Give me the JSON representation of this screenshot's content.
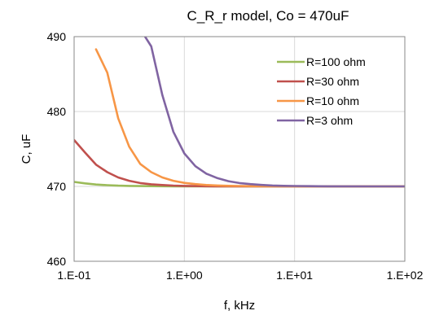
{
  "chart_data": {
    "type": "line",
    "title": "C_R_r model, Co = 470uF",
    "xlabel": "f, kHz",
    "ylabel": "C, uF",
    "xscale": "log",
    "xlim": [
      0.1,
      100
    ],
    "ylim": [
      460,
      490
    ],
    "x_ticks": [
      0.1,
      1,
      10,
      100
    ],
    "x_tick_labels": [
      "1.E-01",
      "1.E+00",
      "1.E+01",
      "1.E+02"
    ],
    "y_ticks": [
      460,
      470,
      480,
      490
    ],
    "y_tick_labels": [
      "460",
      "470",
      "480",
      "490"
    ],
    "grid": true,
    "legend_position": "top-right",
    "series": [
      {
        "name": "R=100 ohm",
        "color": "#9bbb59",
        "x": [
          0.1,
          0.126,
          0.158,
          0.2,
          0.251,
          0.316,
          0.398,
          0.501,
          0.631,
          0.794,
          1,
          2,
          5,
          10,
          20,
          50,
          100
        ],
        "y": [
          470.6,
          470.4,
          470.25,
          470.16,
          470.1,
          470.06,
          470.04,
          470.03,
          470.02,
          470.01,
          470.0,
          470.0,
          470.0,
          470.0,
          470.0,
          470.0,
          470.0
        ]
      },
      {
        "name": "R=30 ohm",
        "color": "#c0504d",
        "x": [
          0.1,
          0.126,
          0.158,
          0.2,
          0.251,
          0.316,
          0.398,
          0.501,
          0.631,
          0.794,
          1,
          1.259,
          1.585,
          2,
          5,
          10,
          20,
          50,
          100
        ],
        "y": [
          476.2,
          474.5,
          472.9,
          471.9,
          471.2,
          470.75,
          470.45,
          470.28,
          470.18,
          470.11,
          470.07,
          470.04,
          470.02,
          470.01,
          470.0,
          470.0,
          470.0,
          470.0,
          470.0
        ]
      },
      {
        "name": "R=10 ohm",
        "color": "#f79646",
        "x": [
          0.158,
          0.2,
          0.251,
          0.316,
          0.398,
          0.501,
          0.631,
          0.794,
          1,
          1.259,
          1.585,
          2,
          2.512,
          3.162,
          3.981,
          5.012,
          7.943,
          10,
          20,
          50,
          100
        ],
        "y": [
          488.3,
          485.2,
          479.1,
          475.3,
          473.0,
          471.9,
          471.2,
          470.75,
          470.47,
          470.3,
          470.19,
          470.12,
          470.08,
          470.05,
          470.03,
          470.02,
          470.01,
          470.0,
          470.0,
          470.0,
          470.0
        ]
      },
      {
        "name": "R=3 ohm",
        "color": "#8064a2",
        "x": [
          0.44,
          0.501,
          0.631,
          0.794,
          1,
          1.259,
          1.585,
          2,
          2.512,
          3.162,
          3.981,
          5.012,
          6.31,
          7.943,
          10,
          20,
          50,
          100
        ],
        "y": [
          490,
          488.7,
          482.2,
          477.3,
          474.4,
          472.7,
          471.7,
          471.1,
          470.7,
          470.45,
          470.3,
          470.2,
          470.12,
          470.08,
          470.05,
          470.01,
          470.0,
          470.0
        ]
      }
    ]
  }
}
